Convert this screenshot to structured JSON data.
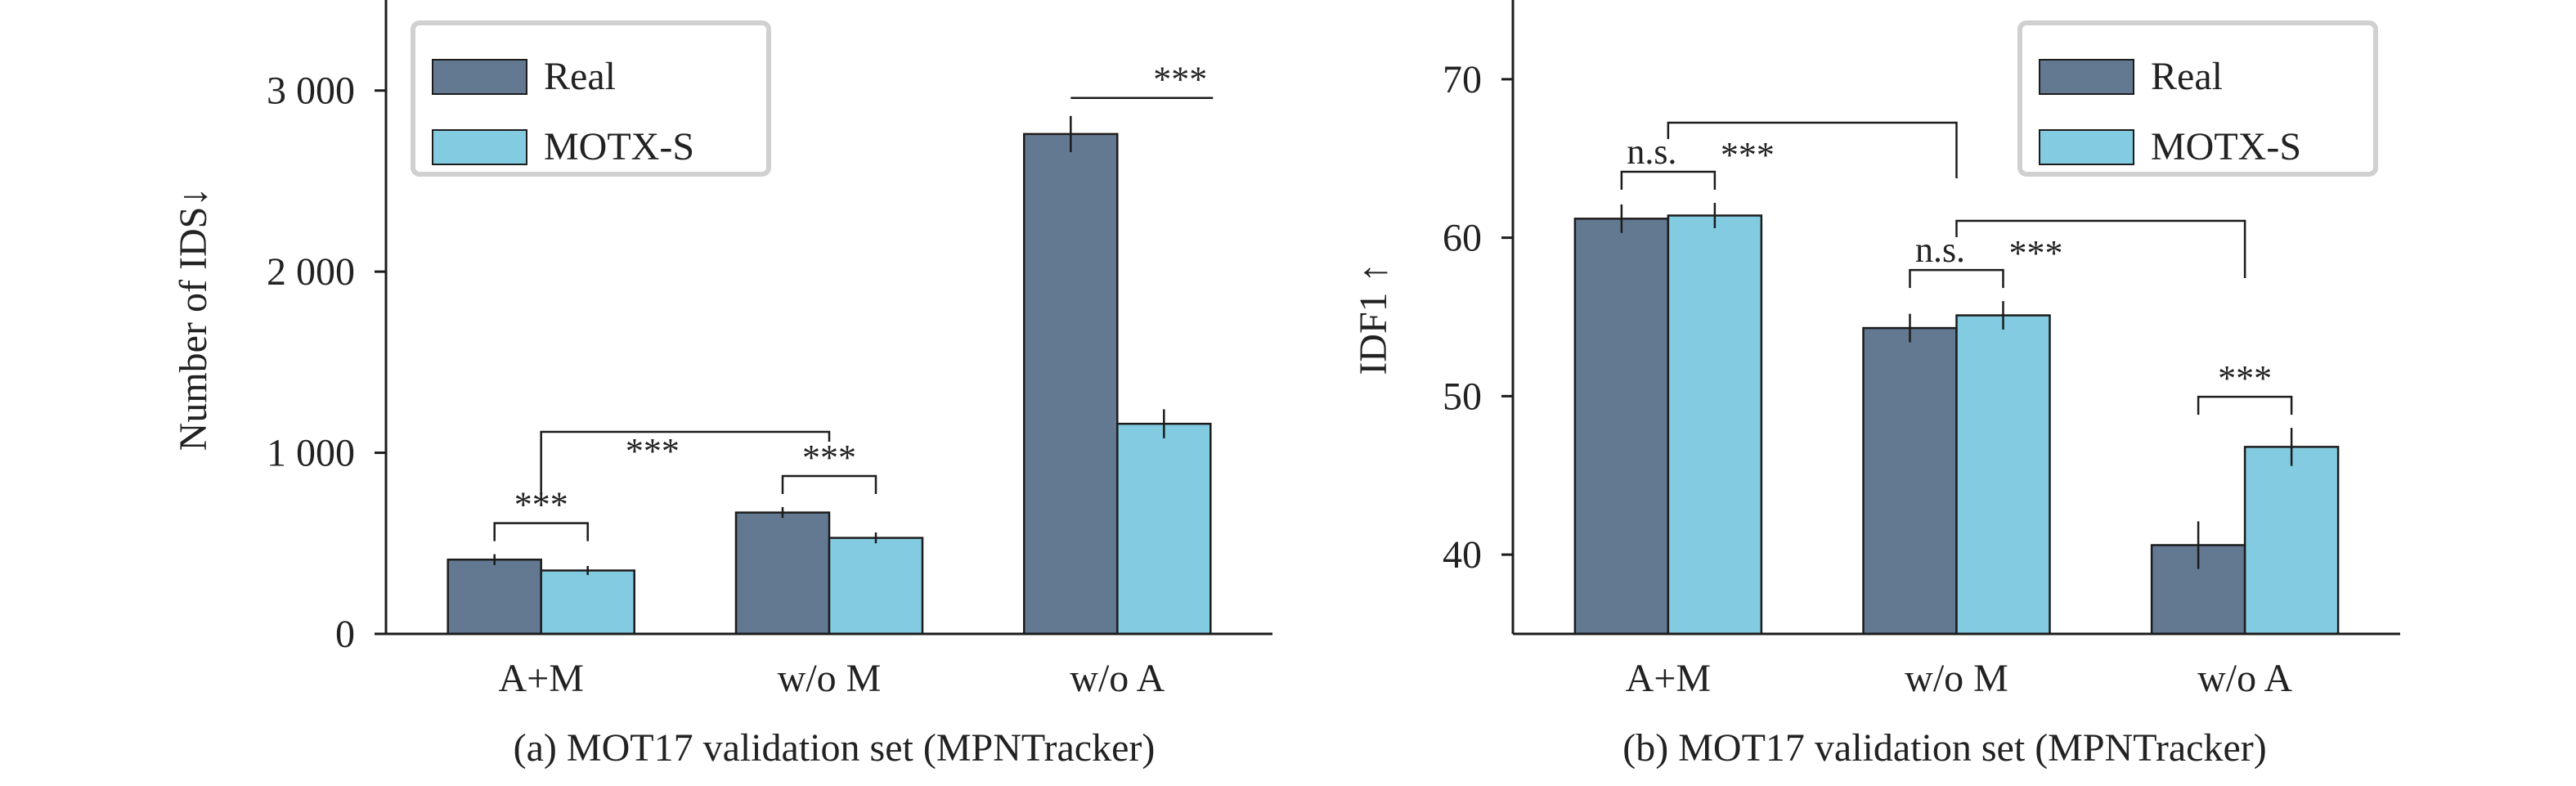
{
  "chart_data": [
    {
      "type": "bar",
      "caption": "(a) MOT17 validation set (MPNTracker)",
      "xlabel": "",
      "ylabel": "Number of IDS↓",
      "ylim": [
        0,
        3500
      ],
      "yticks": [
        0,
        1000,
        2000,
        3000
      ],
      "ytick_labels": [
        "0",
        "1 000",
        "2 000",
        "3 000"
      ],
      "categories": [
        "A+M",
        "w/o M",
        "w/o A"
      ],
      "series": [
        {
          "name": "Real",
          "color": "#637891",
          "values": [
            410,
            670,
            2760
          ],
          "errors": [
            30,
            30,
            100
          ]
        },
        {
          "name": "MOTX-S",
          "color": "#83cbe1",
          "values": [
            350,
            530,
            1160
          ],
          "errors": [
            25,
            30,
            80
          ]
        }
      ],
      "legend_position": "top-left",
      "grid": false,
      "significance": [
        {
          "label": "***",
          "from": {
            "category": 0,
            "series": 0
          },
          "to": {
            "category": 0,
            "series": 1
          }
        },
        {
          "label": "***",
          "from": {
            "category": 1,
            "series": 0
          },
          "to": {
            "category": 1,
            "series": 1
          }
        },
        {
          "label": "***",
          "from": {
            "category": 2,
            "series": 0
          },
          "to": {
            "category": 2,
            "series": 1
          }
        },
        {
          "label": "***",
          "from": {
            "category": 0,
            "series": -1
          },
          "to": {
            "category": 1,
            "series": -1
          }
        }
      ]
    },
    {
      "type": "bar",
      "caption": "(b) MOT17 validation set (MPNTracker)",
      "xlabel": "",
      "ylabel": "IDF1 ↑",
      "ylim": [
        35,
        75
      ],
      "yticks": [
        40,
        50,
        60,
        70
      ],
      "ytick_labels": [
        "40",
        "50",
        "60",
        "70"
      ],
      "categories": [
        "A+M",
        "w/o M",
        "w/o A"
      ],
      "series": [
        {
          "name": "Real",
          "color": "#637891",
          "values": [
            61.2,
            54.3,
            40.6
          ],
          "errors": [
            0.9,
            0.9,
            1.5
          ]
        },
        {
          "name": "MOTX-S",
          "color": "#83cbe1",
          "values": [
            61.4,
            55.1,
            46.8
          ],
          "errors": [
            0.8,
            0.9,
            1.2
          ]
        }
      ],
      "legend_position": "top-right",
      "grid": false,
      "significance": [
        {
          "label": "n.s.",
          "label2": "***",
          "from": {
            "category": 0,
            "series": 0
          },
          "to": {
            "category": 0,
            "series": 1
          }
        },
        {
          "label": "n.s.",
          "label2": "***",
          "from": {
            "category": 1,
            "series": 0
          },
          "to": {
            "category": 1,
            "series": 1
          }
        },
        {
          "label": "***",
          "from": {
            "category": 2,
            "series": 0
          },
          "to": {
            "category": 2,
            "series": 1
          }
        },
        {
          "label": "",
          "from": {
            "category": 0,
            "series": -1
          },
          "to": {
            "category": 1,
            "series": -1
          }
        },
        {
          "label": "",
          "from": {
            "category": 1,
            "series": -1
          },
          "to": {
            "category": 2,
            "series": -1
          }
        }
      ]
    }
  ]
}
